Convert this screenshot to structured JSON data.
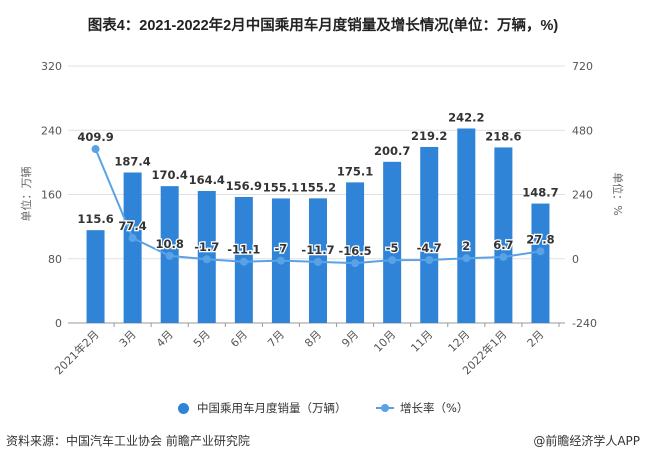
{
  "title": "图表4：2021-2022年2月中国乘用车月度销量及增长情况(单位：万辆，%)",
  "source": "资料来源：中国汽车工业协会 前瞻产业研究院",
  "credit": "@前瞻经济学人APP",
  "chart_data": {
    "type": "bar+line",
    "categories": [
      "2021年2月",
      "3月",
      "4月",
      "5月",
      "6月",
      "7月",
      "8月",
      "9月",
      "10月",
      "11月",
      "12月",
      "2022年1月",
      "2月"
    ],
    "series": [
      {
        "name": "中国乘用车月度销量（万辆）",
        "type": "bar",
        "axis": "left",
        "color": "#2f84d8",
        "values": [
          115.6,
          187.4,
          170.4,
          164.4,
          156.9,
          155.1,
          155.2,
          175.1,
          200.7,
          219.2,
          242.2,
          218.6,
          148.7
        ]
      },
      {
        "name": "增长率（%）",
        "type": "line",
        "axis": "right",
        "color": "#5aa2e6",
        "values": [
          409.9,
          77.4,
          10.8,
          -1.7,
          -11.1,
          -7,
          -11.7,
          -16.5,
          -5,
          -4.7,
          2,
          6.7,
          27.8
        ]
      }
    ],
    "left_axis": {
      "label": "单位：万辆",
      "ylim": [
        0,
        320
      ],
      "ticks": [
        0,
        80,
        160,
        240,
        320
      ]
    },
    "right_axis": {
      "label": "单位：%",
      "ylim": [
        -240,
        720
      ],
      "ticks": [
        -240,
        0,
        240,
        480,
        720
      ]
    },
    "grid": true,
    "legend": "bottom"
  }
}
